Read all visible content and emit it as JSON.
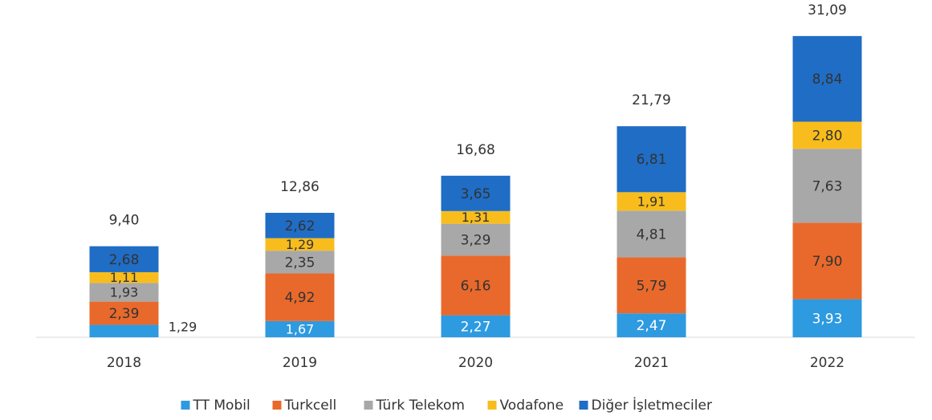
{
  "chart_data": {
    "type": "stacked-bar",
    "categories": [
      "2018",
      "2019",
      "2020",
      "2021",
      "2022"
    ],
    "series": [
      {
        "name": "TT Mobil",
        "color": "#2e9ae0",
        "values": [
          1.29,
          1.67,
          2.27,
          2.47,
          3.93
        ],
        "value_labels": [
          "1,29",
          "1,67",
          "2,27",
          "2,47",
          "3,93"
        ]
      },
      {
        "name": "Turkcell",
        "color": "#e8692b",
        "values": [
          2.39,
          4.92,
          6.16,
          5.79,
          7.9
        ],
        "value_labels": [
          "2,39",
          "4,92",
          "6,16",
          "5,79",
          "7,90"
        ]
      },
      {
        "name": "Türk Telekom",
        "color": "#a8a8a8",
        "values": [
          1.93,
          2.35,
          3.29,
          4.81,
          7.63
        ],
        "value_labels": [
          "1,93",
          "2,35",
          "3,29",
          "4,81",
          "7,63"
        ]
      },
      {
        "name": "Vodafone",
        "color": "#f8bd1c",
        "values": [
          1.11,
          1.29,
          1.31,
          1.91,
          2.8
        ],
        "value_labels": [
          "1,11",
          "1,29",
          "1,31",
          "1,91",
          "2,80"
        ]
      },
      {
        "name": "Diğer İşletmeciler",
        "color": "#1f6dc5",
        "values": [
          2.68,
          2.62,
          3.65,
          6.81,
          8.84
        ],
        "value_labels": [
          "2,68",
          "2,62",
          "3,65",
          "6,81",
          "8,84"
        ]
      }
    ],
    "totals": [
      9.4,
      12.86,
      16.68,
      21.79,
      31.09
    ],
    "total_labels": [
      "9,40",
      "12,86",
      "16,68",
      "21,79",
      "31,09"
    ],
    "legend": "bottom"
  }
}
